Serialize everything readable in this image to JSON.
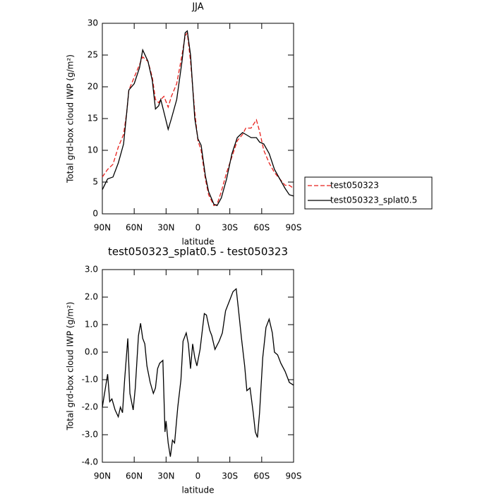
{
  "chart_data": [
    {
      "type": "line",
      "title": "JJA",
      "ylabel": "Total grd-box cloud IWP (g/m²)",
      "xlabel": "latitude",
      "xlim": [
        90,
        -90
      ],
      "ylim": [
        0,
        30
      ],
      "xticks": [
        {
          "value": 90,
          "label": "90N"
        },
        {
          "value": 60,
          "label": "60N"
        },
        {
          "value": 30,
          "label": "30N"
        },
        {
          "value": 0,
          "label": "0"
        },
        {
          "value": -30,
          "label": "30S"
        },
        {
          "value": -60,
          "label": "60S"
        },
        {
          "value": -90,
          "label": "90S"
        }
      ],
      "yticks": [
        0,
        5,
        10,
        15,
        20,
        25,
        30
      ],
      "legend": "right",
      "x": [
        90,
        85,
        80,
        75,
        70,
        67,
        65,
        60,
        55,
        52,
        47,
        43,
        40,
        37,
        35,
        32,
        28,
        25,
        20,
        15,
        12,
        10,
        7,
        3,
        0,
        -3,
        -7,
        -10,
        -15,
        -18,
        -22,
        -27,
        -32,
        -37,
        -42,
        -45,
        -50,
        -55,
        -58,
        -62,
        -67,
        -72,
        -77,
        -82,
        -86,
        -90
      ],
      "series": [
        {
          "name": "test050323",
          "color": "#e8201c",
          "dash": true,
          "values": [
            5.8,
            7,
            7.8,
            10.5,
            12.5,
            16,
            19.5,
            21.5,
            23.5,
            24.7,
            24,
            21.5,
            18,
            17.5,
            18,
            18.5,
            16.8,
            18.5,
            20.5,
            25,
            28,
            28.5,
            24,
            16,
            11.5,
            10,
            5.5,
            3,
            1.3,
            1.5,
            3.5,
            6.5,
            9,
            11.5,
            12.5,
            13.5,
            13.5,
            14.8,
            13,
            10,
            8,
            6.5,
            5.5,
            4.5,
            4.5,
            4
          ]
        },
        {
          "name": "test050323_splat0.5",
          "color": "#000000",
          "dash": false,
          "values": [
            3.8,
            5.5,
            5.8,
            8,
            11,
            16,
            19.5,
            20.5,
            23,
            25.8,
            24,
            21,
            16.5,
            17,
            18,
            16,
            13.3,
            15,
            18,
            24,
            28.5,
            28.8,
            25,
            15,
            11.8,
            10.8,
            6,
            3.5,
            1.5,
            1.3,
            2.5,
            5.5,
            9.5,
            12,
            12.8,
            12.5,
            12,
            12,
            11.3,
            11,
            9.5,
            7,
            5.5,
            4,
            3,
            2.8
          ]
        }
      ]
    },
    {
      "type": "line",
      "title": "test050323_splat0.5 - test050323",
      "ylabel": "Total grd-box cloud IWP (g/m²)",
      "xlabel": "latitude",
      "xlim": [
        90,
        -90
      ],
      "ylim": [
        -4,
        3
      ],
      "xticks": [
        {
          "value": 90,
          "label": "90N"
        },
        {
          "value": 60,
          "label": "60N"
        },
        {
          "value": 30,
          "label": "30N"
        },
        {
          "value": 0,
          "label": "0"
        },
        {
          "value": -30,
          "label": "30S"
        },
        {
          "value": -60,
          "label": "60S"
        },
        {
          "value": -90,
          "label": "90S"
        }
      ],
      "yticks": [
        {
          "value": -4,
          "label": "-4.0"
        },
        {
          "value": -3,
          "label": "-3.0"
        },
        {
          "value": -2,
          "label": "-2.0"
        },
        {
          "value": -1,
          "label": "-1.0"
        },
        {
          "value": 0,
          "label": "0.0"
        },
        {
          "value": 1,
          "label": "1.0"
        },
        {
          "value": 2,
          "label": "2.0"
        },
        {
          "value": 3,
          "label": "3.0"
        }
      ],
      "x": [
        90,
        85,
        83,
        81,
        78,
        75,
        73,
        71,
        69,
        67,
        66,
        64,
        61,
        59,
        56,
        54,
        52,
        50,
        48,
        45,
        42,
        40,
        38,
        36,
        33,
        31,
        30,
        28,
        26,
        24,
        22,
        19,
        16,
        14,
        11,
        9,
        7,
        5,
        3,
        1,
        -2,
        -6,
        -8,
        -11,
        -13,
        -16,
        -20,
        -23,
        -26,
        -30,
        -33,
        -36,
        -38,
        -41,
        -44,
        -46,
        -49,
        -52,
        -54,
        -56,
        -58,
        -61,
        -64,
        -67,
        -70,
        -72,
        -75,
        -78,
        -82,
        -86,
        -90
      ],
      "series": [
        {
          "name": "test050323_splat0.5 - test050323",
          "color": "#000000",
          "dash": false,
          "values": [
            -2.0,
            -0.8,
            -1.8,
            -1.7,
            -2.1,
            -2.35,
            -2.0,
            -2.2,
            -1.0,
            0.0,
            0.5,
            -1.5,
            -2.1,
            -1.3,
            0.6,
            1.05,
            0.5,
            0.3,
            -0.5,
            -1.1,
            -1.5,
            -1.3,
            -0.6,
            -0.4,
            -0.3,
            -2.9,
            -2.5,
            -3.3,
            -3.8,
            -3.2,
            -3.3,
            -2.0,
            -1.0,
            0.4,
            0.7,
            0.3,
            -0.6,
            0.3,
            -0.2,
            -0.5,
            0.1,
            1.4,
            1.35,
            0.8,
            0.6,
            0.1,
            0.4,
            0.7,
            1.5,
            1.9,
            2.2,
            2.3,
            1.6,
            0.5,
            -0.5,
            -1.4,
            -1.3,
            -2.2,
            -2.9,
            -3.1,
            -2.2,
            -0.2,
            0.9,
            1.2,
            0.7,
            0.0,
            -0.1,
            -0.4,
            -0.7,
            -1.1,
            -1.2
          ]
        }
      ]
    }
  ]
}
